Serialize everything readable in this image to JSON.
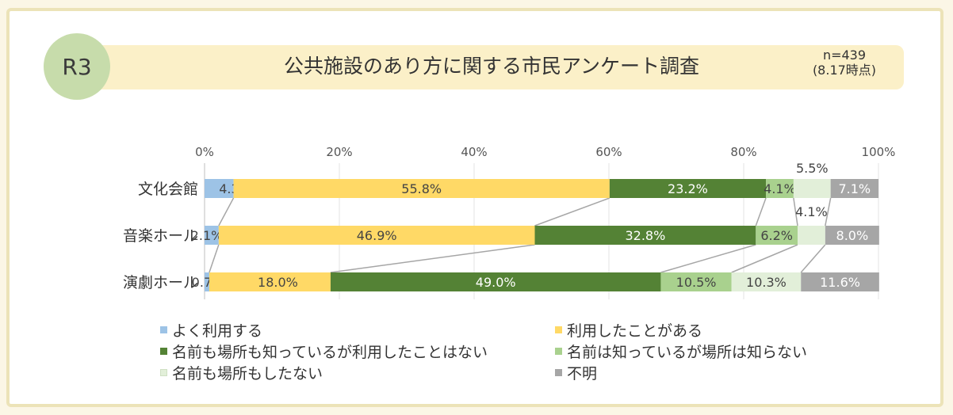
{
  "header": {
    "badge": "R3",
    "title": "公共施設のあり方に関する市民アンケート調査",
    "sample": "n=439",
    "date": "(8.17時点)"
  },
  "chart_data": {
    "type": "bar",
    "orientation": "horizontal",
    "stacked": true,
    "xlim": [
      0,
      100
    ],
    "x_ticks": [
      "0%",
      "20%",
      "40%",
      "60%",
      "80%",
      "100%"
    ],
    "categories": [
      "文化会館",
      "音楽ホール",
      "演劇ホール"
    ],
    "series": [
      {
        "name": "よく利用する",
        "color": "#9dc3e6",
        "values": [
          4.3,
          2.1,
          0.7
        ],
        "labels": [
          "4.3%",
          "2.1%",
          "0.7%"
        ]
      },
      {
        "name": "利用したことがある",
        "color": "#ffd966",
        "values": [
          55.8,
          46.9,
          18.0
        ],
        "labels": [
          "55.8%",
          "46.9%",
          "18.0%"
        ]
      },
      {
        "name": "名前も場所も知っているが利用したことはない",
        "color": "#548235",
        "values": [
          23.2,
          32.8,
          49.0
        ],
        "labels": [
          "23.2%",
          "32.8%",
          "49.0%"
        ]
      },
      {
        "name": "名前は知っているが場所は知らない",
        "color": "#a9d18e",
        "values": [
          4.1,
          6.2,
          10.5
        ],
        "labels": [
          "4.1%",
          "6.2%",
          "10.5%"
        ]
      },
      {
        "name": "名前も場所もしたない",
        "color": "#e2efd9",
        "values": [
          5.5,
          4.1,
          10.3
        ],
        "labels": [
          "5.5%",
          "4.1%",
          "10.3%"
        ]
      },
      {
        "name": "不明",
        "color": "#a6a6a6",
        "values": [
          7.1,
          8.0,
          11.6
        ],
        "labels": [
          "7.1%",
          "8.0%",
          "11.6%"
        ]
      }
    ]
  }
}
